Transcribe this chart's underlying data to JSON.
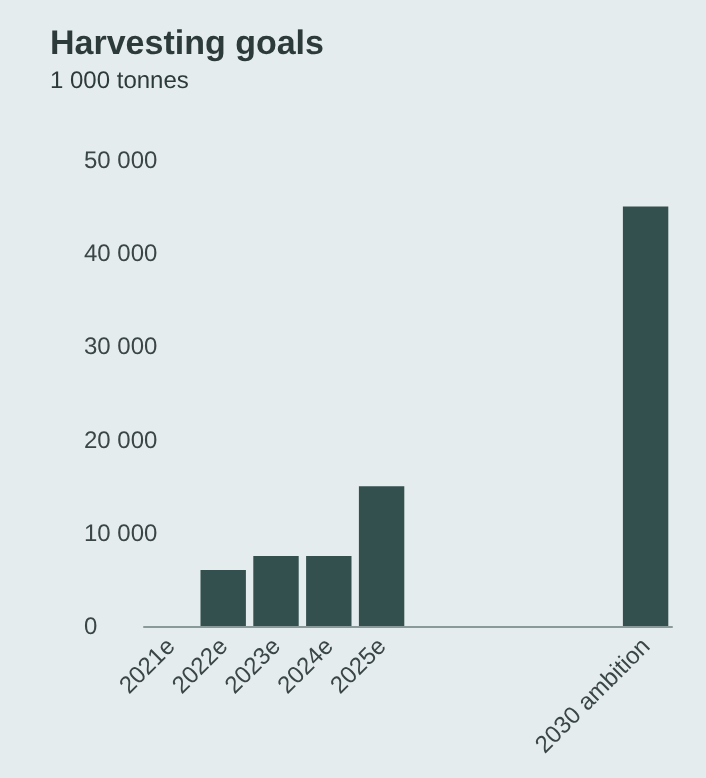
{
  "chart_data": {
    "type": "bar",
    "title": "Harvesting goals",
    "subtitle": "1 000 tonnes",
    "categories": [
      "2021e",
      "2022e",
      "2023e",
      "2024e",
      "2025e",
      null,
      null,
      null,
      null,
      "2030 ambition"
    ],
    "values": [
      0,
      6000,
      7500,
      7500,
      15000,
      null,
      null,
      null,
      null,
      45000
    ],
    "color": "#33504f",
    "ylim": [
      0,
      50000
    ],
    "yticks": [
      {
        "value": 0,
        "label": "0"
      },
      {
        "value": 10000,
        "label": "10 000"
      },
      {
        "value": 20000,
        "label": "20 000"
      },
      {
        "value": 30000,
        "label": "30 000"
      },
      {
        "value": 40000,
        "label": "40 000"
      },
      {
        "value": 50000,
        "label": "50 000"
      }
    ],
    "grid": false
  }
}
